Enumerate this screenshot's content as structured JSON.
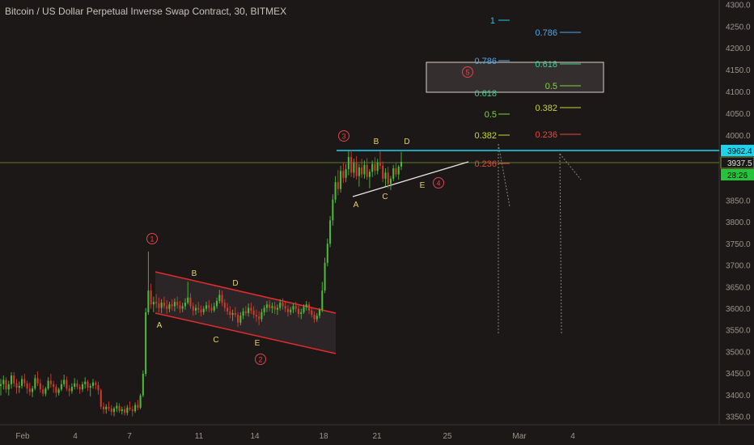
{
  "chart_data": {
    "type": "candlestick",
    "title": "Bitcoin / US Dollar Perpetual Inverse Swap Contract, 30, BITMEX",
    "x_axis": {
      "tick_labels": [
        "Feb",
        "4",
        "7",
        "11",
        "14",
        "18",
        "21",
        "25",
        "Mar",
        "4"
      ]
    },
    "y_axis": {
      "ylim": [
        3320,
        4310
      ],
      "tick_labels": [
        "4300.0",
        "4250.0",
        "4200.0",
        "4150.0",
        "4100.0",
        "4050.0",
        "4000.0",
        "3950.0",
        "3900.0",
        "3850.0",
        "3800.0",
        "3750.0",
        "3700.0",
        "3650.0",
        "3600.0",
        "3550.0",
        "3500.0",
        "3450.0",
        "3400.0",
        "3350.0"
      ]
    },
    "price_tags": [
      {
        "label": "3962.4",
        "color": "#18d4ef",
        "text_color": "#000000"
      },
      {
        "label": "3937.5",
        "color": "#1c1818",
        "text_color": "#e0e0e0",
        "border": "#7d9a3c"
      },
      {
        "label": "28:26",
        "color": "#26c23a",
        "text_color": "#000000"
      }
    ],
    "horizontal_lines": [
      {
        "price": 3962.4,
        "color": "#18d4ef"
      },
      {
        "price": 3937.5,
        "color": "#5f7a2a"
      }
    ],
    "wave_labels": {
      "circled": [
        "1",
        "2",
        "3",
        "4",
        "5"
      ],
      "letters_channel": [
        "A",
        "B",
        "C",
        "D",
        "E"
      ],
      "letters_triangle": [
        "A",
        "B",
        "C",
        "D",
        "E"
      ]
    },
    "fib_levels_left": [
      {
        "label": "1",
        "price": 4270,
        "color": "#1ec8e8"
      },
      {
        "label": "0.786",
        "price": 4184,
        "color": "#4fa6e8"
      },
      {
        "label": "0.618",
        "price": 4114,
        "color": "#3ecf8f"
      },
      {
        "label": "0.5",
        "price": 4050,
        "color": "#7dd63c"
      },
      {
        "label": "0.382",
        "price": 3998,
        "color": "#c8d63c"
      },
      {
        "label": "0.236",
        "price": 3930,
        "color": "#e04b3c"
      }
    ],
    "fib_levels_right": [
      {
        "label": "0.786",
        "price": 4237,
        "color": "#4fa6e8"
      },
      {
        "label": "0.618",
        "price": 4167,
        "color": "#3ecf8f"
      },
      {
        "label": "0.5",
        "price": 4113,
        "color": "#7dd63c"
      },
      {
        "label": "0.382",
        "price": 4061,
        "color": "#c8d63c"
      },
      {
        "label": "0.236",
        "price": 4000,
        "color": "#e04b3c"
      }
    ],
    "target_box": {
      "price_top": 4168,
      "price_bottom": 4098
    },
    "channel": {
      "upper": [
        3685,
        3588
      ],
      "lower": [
        3590,
        3498
      ]
    },
    "triangle_line": [
      3858,
      3915
    ],
    "colors": {
      "background": "#1c1818",
      "up_candle": "#4dbb3a",
      "down_candle": "#d33a2c",
      "channel": "#e52b2b",
      "wave_number": "#e2434b",
      "wave_letter": "#e8d46a",
      "projection": "#8a8580"
    },
    "series": [
      {
        "ohlc": [
          [
            3420,
            3436,
            3398,
            3424
          ],
          [
            3424,
            3444,
            3412,
            3434
          ],
          [
            3434,
            3440,
            3404,
            3412
          ],
          [
            3412,
            3432,
            3398,
            3424
          ],
          [
            3424,
            3452,
            3414,
            3444
          ],
          [
            3444,
            3452,
            3418,
            3426
          ],
          [
            3426,
            3436,
            3402,
            3416
          ],
          [
            3416,
            3430,
            3404,
            3420
          ],
          [
            3420,
            3444,
            3414,
            3436
          ],
          [
            3436,
            3448,
            3418,
            3426
          ],
          [
            3426,
            3432,
            3402,
            3414
          ],
          [
            3414,
            3428,
            3398,
            3406
          ],
          [
            3406,
            3420,
            3394,
            3414
          ],
          [
            3414,
            3446,
            3410,
            3438
          ],
          [
            3438,
            3454,
            3420,
            3426
          ],
          [
            3426,
            3436,
            3404,
            3412
          ],
          [
            3412,
            3422,
            3396,
            3402
          ],
          [
            3402,
            3418,
            3396,
            3414
          ],
          [
            3414,
            3440,
            3410,
            3432
          ],
          [
            3432,
            3448,
            3416,
            3424
          ],
          [
            3424,
            3432,
            3404,
            3418
          ],
          [
            3418,
            3424,
            3394,
            3404
          ],
          [
            3404,
            3416,
            3398,
            3412
          ],
          [
            3412,
            3434,
            3408,
            3424
          ],
          [
            3424,
            3446,
            3418,
            3434
          ],
          [
            3434,
            3442,
            3408,
            3414
          ],
          [
            3414,
            3422,
            3396,
            3408
          ],
          [
            3408,
            3426,
            3402,
            3418
          ],
          [
            3418,
            3438,
            3412,
            3426
          ],
          [
            3426,
            3434,
            3412,
            3418
          ],
          [
            3418,
            3424,
            3402,
            3412
          ],
          [
            3412,
            3430,
            3406,
            3424
          ],
          [
            3424,
            3440,
            3414,
            3430
          ],
          [
            3430,
            3434,
            3408,
            3416
          ],
          [
            3416,
            3426,
            3396,
            3420
          ],
          [
            3420,
            3436,
            3414,
            3428
          ],
          [
            3428,
            3432,
            3412,
            3422
          ],
          [
            3422,
            3430,
            3400,
            3410
          ],
          [
            3410,
            3414,
            3366,
            3372
          ],
          [
            3372,
            3382,
            3356,
            3366
          ],
          [
            3366,
            3378,
            3356,
            3372
          ],
          [
            3372,
            3384,
            3362,
            3368
          ],
          [
            3368,
            3376,
            3352,
            3360
          ],
          [
            3360,
            3372,
            3350,
            3368
          ],
          [
            3368,
            3382,
            3360,
            3374
          ],
          [
            3374,
            3380,
            3358,
            3362
          ],
          [
            3362,
            3372,
            3354,
            3366
          ],
          [
            3366,
            3374,
            3352,
            3358
          ],
          [
            3358,
            3376,
            3352,
            3370
          ],
          [
            3370,
            3384,
            3362,
            3366
          ],
          [
            3366,
            3374,
            3350,
            3362
          ],
          [
            3362,
            3382,
            3358,
            3376
          ],
          [
            3376,
            3388,
            3364,
            3370
          ],
          [
            3370,
            3402,
            3366,
            3398
          ],
          [
            3398,
            3456,
            3394,
            3448
          ],
          [
            3448,
            3600,
            3442,
            3590
          ],
          [
            3590,
            3730,
            3584,
            3640
          ],
          [
            3640,
            3656,
            3598,
            3608
          ],
          [
            3608,
            3626,
            3590,
            3614
          ],
          [
            3614,
            3632,
            3600,
            3610
          ],
          [
            3610,
            3624,
            3590,
            3600
          ],
          [
            3600,
            3620,
            3588,
            3612
          ],
          [
            3612,
            3626,
            3598,
            3604
          ],
          [
            3604,
            3618,
            3586,
            3598
          ],
          [
            3598,
            3614,
            3590,
            3608
          ],
          [
            3608,
            3620,
            3594,
            3604
          ],
          [
            3604,
            3622,
            3592,
            3614
          ],
          [
            3614,
            3626,
            3598,
            3606
          ],
          [
            3606,
            3616,
            3588,
            3598
          ],
          [
            3598,
            3612,
            3590,
            3604
          ],
          [
            3604,
            3622,
            3596,
            3612
          ],
          [
            3612,
            3660,
            3608,
            3624
          ],
          [
            3624,
            3634,
            3598,
            3604
          ],
          [
            3604,
            3612,
            3582,
            3594
          ],
          [
            3594,
            3608,
            3584,
            3600
          ],
          [
            3600,
            3614,
            3588,
            3596
          ],
          [
            3596,
            3606,
            3580,
            3590
          ],
          [
            3590,
            3604,
            3584,
            3598
          ],
          [
            3598,
            3614,
            3592,
            3606
          ],
          [
            3606,
            3618,
            3590,
            3600
          ],
          [
            3600,
            3610,
            3588,
            3594
          ],
          [
            3594,
            3612,
            3590,
            3604
          ],
          [
            3604,
            3624,
            3598,
            3616
          ],
          [
            3616,
            3642,
            3610,
            3630
          ],
          [
            3630,
            3640,
            3604,
            3612
          ],
          [
            3612,
            3620,
            3592,
            3600
          ],
          [
            3600,
            3612,
            3584,
            3592
          ],
          [
            3592,
            3604,
            3576,
            3584
          ],
          [
            3584,
            3596,
            3570,
            3588
          ],
          [
            3588,
            3602,
            3578,
            3584
          ],
          [
            3584,
            3590,
            3556,
            3566
          ],
          [
            3566,
            3590,
            3560,
            3582
          ],
          [
            3582,
            3600,
            3574,
            3592
          ],
          [
            3592,
            3604,
            3582,
            3588
          ],
          [
            3588,
            3610,
            3580,
            3600
          ],
          [
            3600,
            3612,
            3586,
            3594
          ],
          [
            3594,
            3604,
            3576,
            3584
          ],
          [
            3584,
            3596,
            3568,
            3580
          ],
          [
            3580,
            3592,
            3560,
            3574
          ],
          [
            3574,
            3598,
            3568,
            3590
          ],
          [
            3590,
            3606,
            3582,
            3600
          ],
          [
            3600,
            3616,
            3590,
            3608
          ],
          [
            3608,
            3618,
            3592,
            3600
          ],
          [
            3600,
            3612,
            3588,
            3604
          ],
          [
            3604,
            3614,
            3586,
            3596
          ],
          [
            3596,
            3608,
            3584,
            3600
          ],
          [
            3600,
            3620,
            3594,
            3612
          ],
          [
            3612,
            3622,
            3596,
            3604
          ],
          [
            3604,
            3616,
            3590,
            3598
          ],
          [
            3598,
            3606,
            3580,
            3590
          ],
          [
            3590,
            3602,
            3584,
            3596
          ],
          [
            3596,
            3610,
            3588,
            3604
          ],
          [
            3604,
            3614,
            3590,
            3598
          ],
          [
            3598,
            3606,
            3578,
            3586
          ],
          [
            3586,
            3598,
            3574,
            3590
          ],
          [
            3590,
            3608,
            3586,
            3602
          ],
          [
            3602,
            3616,
            3594,
            3608
          ],
          [
            3608,
            3614,
            3586,
            3594
          ],
          [
            3594,
            3602,
            3578,
            3584
          ],
          [
            3584,
            3592,
            3566,
            3574
          ],
          [
            3574,
            3588,
            3568,
            3582
          ],
          [
            3582,
            3600,
            3576,
            3596
          ],
          [
            3596,
            3660,
            3590,
            3640
          ],
          [
            3640,
            3716,
            3634,
            3704
          ],
          [
            3704,
            3760,
            3696,
            3748
          ],
          [
            3748,
            3812,
            3740,
            3802
          ],
          [
            3802,
            3862,
            3790,
            3850
          ],
          [
            3850,
            3904,
            3842,
            3890
          ],
          [
            3890,
            3918,
            3860,
            3874
          ],
          [
            3874,
            3928,
            3866,
            3916
          ],
          [
            3916,
            3936,
            3888,
            3900
          ],
          [
            3900,
            3932,
            3890,
            3920
          ],
          [
            3920,
            3962,
            3906,
            3948
          ],
          [
            3948,
            3964,
            3902,
            3912
          ],
          [
            3912,
            3944,
            3900,
            3934
          ],
          [
            3934,
            3950,
            3896,
            3904
          ],
          [
            3904,
            3932,
            3880,
            3924
          ],
          [
            3924,
            3944,
            3900,
            3908
          ],
          [
            3908,
            3940,
            3898,
            3930
          ],
          [
            3930,
            3946,
            3896,
            3902
          ],
          [
            3902,
            3920,
            3876,
            3914
          ],
          [
            3914,
            3940,
            3902,
            3932
          ],
          [
            3932,
            3948,
            3906,
            3916
          ],
          [
            3916,
            3944,
            3908,
            3936
          ],
          [
            3936,
            3962,
            3920,
            3928
          ],
          [
            3928,
            3938,
            3890,
            3898
          ],
          [
            3898,
            3922,
            3880,
            3912
          ],
          [
            3912,
            3926,
            3876,
            3886
          ],
          [
            3886,
            3904,
            3872,
            3898
          ],
          [
            3898,
            3930,
            3892,
            3922
          ],
          [
            3922,
            3936,
            3902,
            3908
          ],
          [
            3908,
            3930,
            3896,
            3926
          ],
          [
            3926,
            3960,
            3918,
            3937
          ]
        ]
      }
    ]
  }
}
